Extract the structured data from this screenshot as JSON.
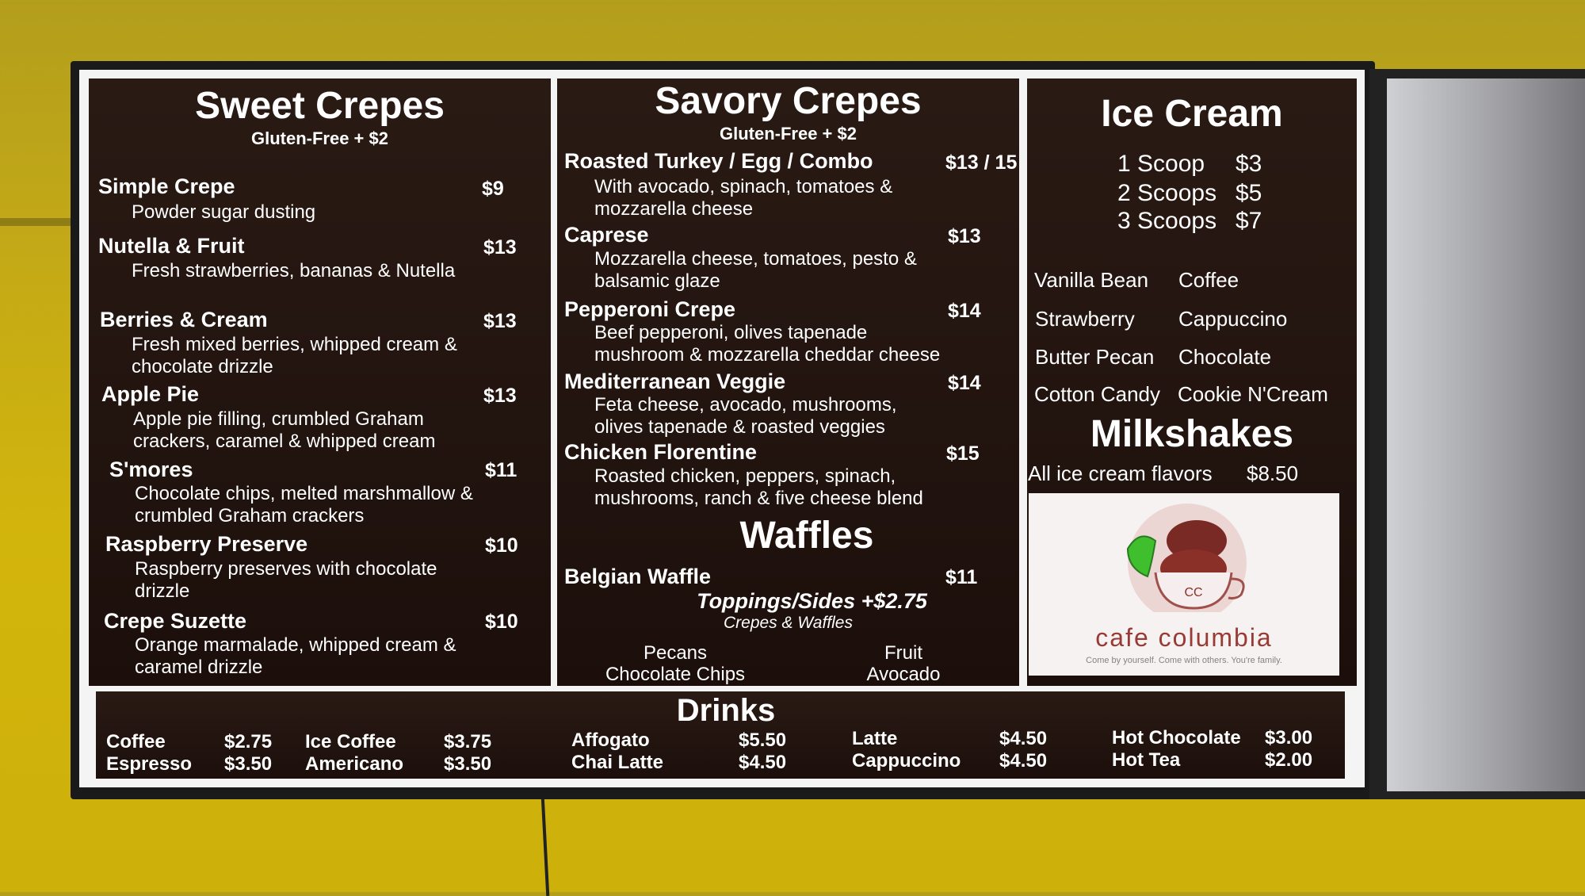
{
  "sweet": {
    "title": "Sweet Crepes",
    "subtitle": "Gluten-Free + $2",
    "items": [
      {
        "name": "Simple Crepe",
        "desc": "Powder sugar dusting",
        "price": "$9"
      },
      {
        "name": "Nutella & Fruit",
        "desc": "Fresh strawberries, bananas & Nutella",
        "price": "$13"
      },
      {
        "name": "Berries & Cream",
        "desc": "Fresh mixed berries, whipped cream & chocolate drizzle",
        "price": "$13"
      },
      {
        "name": "Apple Pie",
        "desc": "Apple pie filling, crumbled Graham crackers, caramel & whipped cream",
        "price": "$13"
      },
      {
        "name": "S'mores",
        "desc": "Chocolate chips, melted marshmallow & crumbled Graham crackers",
        "price": "$11"
      },
      {
        "name": "Raspberry Preserve",
        "desc": "Raspberry preserves with chocolate drizzle",
        "price": "$10"
      },
      {
        "name": "Crepe Suzette",
        "desc": "Orange marmalade, whipped cream & caramel drizzle",
        "price": "$10"
      }
    ]
  },
  "savory": {
    "title": "Savory Crepes",
    "subtitle": "Gluten-Free + $2",
    "items": [
      {
        "name": "Roasted Turkey / Egg / Combo",
        "desc": "With avocado, spinach, tomatoes & mozzarella cheese",
        "price": "$13 / 15"
      },
      {
        "name": "Caprese",
        "desc": "Mozzarella cheese, tomatoes, pesto & balsamic glaze",
        "price": "$13"
      },
      {
        "name": "Pepperoni Crepe",
        "desc": "Beef pepperoni, olives tapenade mushroom & mozzarella cheddar cheese",
        "price": "$14"
      },
      {
        "name": "Mediterranean Veggie",
        "desc": "Feta cheese, avocado, mushrooms, olives tapenade & roasted veggies",
        "price": "$14"
      },
      {
        "name": "Chicken Florentine",
        "desc": "Roasted chicken, peppers, spinach, mushrooms, ranch & five cheese blend",
        "price": "$15"
      }
    ]
  },
  "waffles": {
    "title": "Waffles",
    "item": {
      "name": "Belgian Waffle",
      "price": "$11"
    },
    "toppings_title": "Toppings/Sides +$2.75",
    "toppings_sub": "Crepes & Waffles",
    "toppings": [
      "Pecans",
      "Chocolate Chips",
      "Fruit",
      "Avocado"
    ]
  },
  "ice_cream": {
    "title": "Ice Cream",
    "scoops": [
      {
        "label": "1 Scoop",
        "price": "$3"
      },
      {
        "label": "2 Scoops",
        "price": "$5"
      },
      {
        "label": "3 Scoops",
        "price": "$7"
      }
    ],
    "flavors": [
      "Vanilla Bean",
      "Coffee",
      "Strawberry",
      "Cappuccino",
      "Butter Pecan",
      "Chocolate",
      "Cotton Candy",
      "Cookie N'Cream"
    ]
  },
  "milkshakes": {
    "title": "Milkshakes",
    "label": "All ice cream flavors",
    "price": "$8.50"
  },
  "logo": {
    "name": "cafe columbia",
    "monogram": "CC",
    "tagline": "Come by yourself. Come with others. You're family."
  },
  "drinks": {
    "title": "Drinks",
    "items": [
      {
        "name": "Coffee",
        "price": "$2.75"
      },
      {
        "name": "Espresso",
        "price": "$3.50"
      },
      {
        "name": "Ice Coffee",
        "price": "$3.75"
      },
      {
        "name": "Americano",
        "price": "$3.50"
      },
      {
        "name": "Affogato",
        "price": "$5.50"
      },
      {
        "name": "Chai Latte",
        "price": "$4.50"
      },
      {
        "name": "Latte",
        "price": "$4.50"
      },
      {
        "name": "Cappuccino",
        "price": "$4.50"
      },
      {
        "name": "Hot Chocolate",
        "price": "$3.00"
      },
      {
        "name": "Hot Tea",
        "price": "$2.00"
      }
    ]
  }
}
